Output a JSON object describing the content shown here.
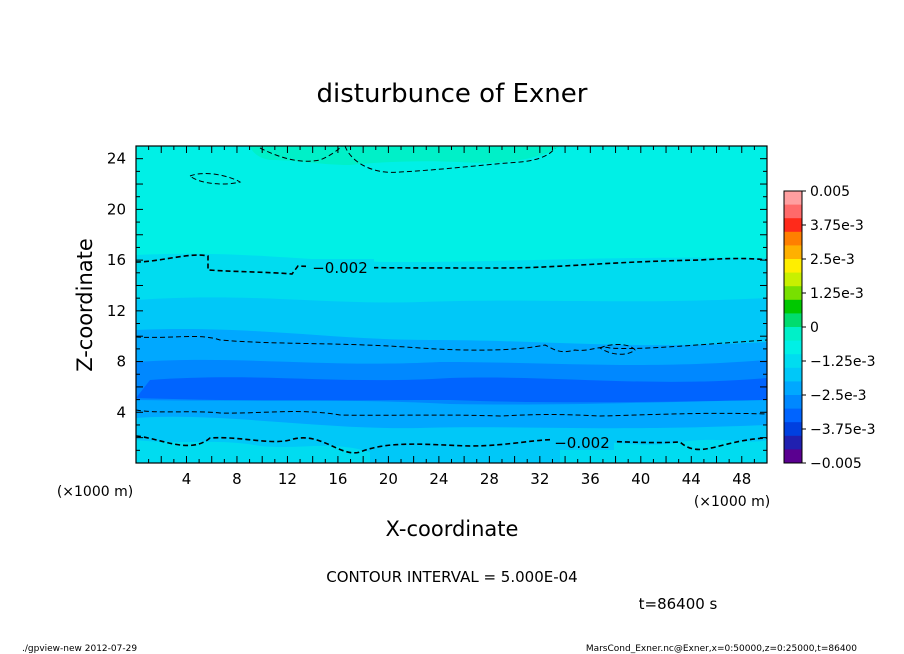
{
  "chart_data": {
    "type": "heatmap",
    "title": "disturbunce of Exner",
    "xlabel": "X-coordinate",
    "ylabel": "Z-coordinate",
    "x_unit": "(×1000 m)",
    "y_unit": "(×1000 m)",
    "xlim": [
      0,
      50
    ],
    "ylim": [
      0,
      25
    ],
    "x_ticks": [
      "4",
      "8",
      "12",
      "16",
      "20",
      "24",
      "28",
      "32",
      "36",
      "40",
      "44",
      "48"
    ],
    "y_ticks": [
      "4",
      "8",
      "12",
      "16",
      "20",
      "24"
    ],
    "colorbar": {
      "labels": [
        "0.005",
        "3.75e-3",
        "2.5e-3",
        "1.25e-3",
        "0",
        "−1.25e-3",
        "−2.5e-3",
        "−3.75e-3",
        "−0.005"
      ],
      "colors": [
        "#ff9fa0",
        "#ff6a6a",
        "#ff2a1a",
        "#ff7f00",
        "#ffb000",
        "#ffee00",
        "#c8f000",
        "#78e000",
        "#00c800",
        "#00dc6e",
        "#00f0c8",
        "#00f0e6",
        "#00dcf0",
        "#00c8f8",
        "#00a8ff",
        "#0088ff",
        "#0064ff",
        "#0040e0",
        "#2020b0",
        "#5a0090"
      ]
    },
    "contour_labels": [
      "−0.002",
      "−0.002"
    ],
    "contour_interval_text": "CONTOUR INTERVAL = 5.000E-04",
    "time_text": "t=86400 s"
  },
  "footer": {
    "left": "./gpview-new   2012-07-29",
    "right": "MarsCond_Exner.nc@Exner,x=0:50000,z=0:25000,t=86400"
  }
}
